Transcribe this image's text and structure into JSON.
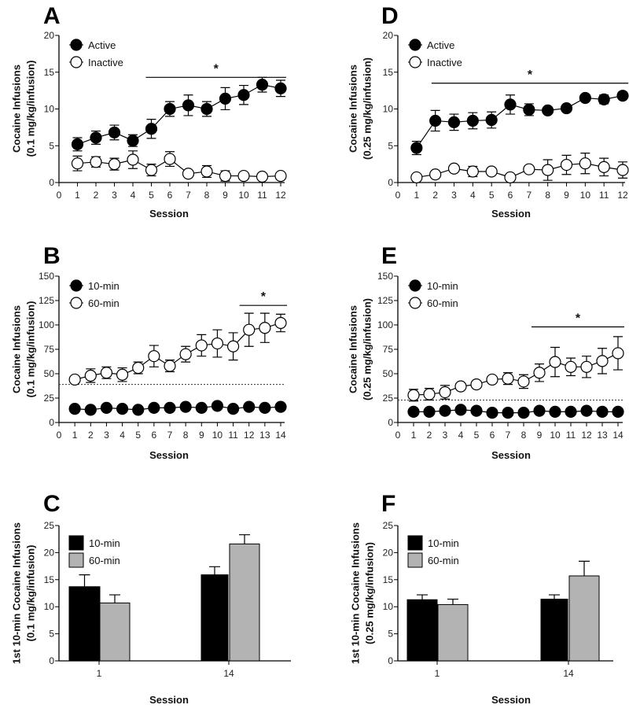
{
  "chart_data": [
    {
      "panel_label": "A",
      "type": "line",
      "ylabel": [
        "Cocaine Infusions",
        "(0.1 mg/kg/infusion)"
      ],
      "xlabel": "Session",
      "xlim": [
        0,
        12
      ],
      "ylim": [
        0,
        20
      ],
      "xticks": [
        "0",
        "1",
        "2",
        "3",
        "4",
        "5",
        "6",
        "7",
        "8",
        "9",
        "10",
        "11",
        "12"
      ],
      "yticks": [
        "0",
        "5",
        "10",
        "15",
        "20"
      ],
      "x": [
        1,
        2,
        3,
        4,
        5,
        6,
        7,
        8,
        9,
        10,
        11,
        12
      ],
      "series": [
        {
          "name": "Active",
          "marker": "filled",
          "values": [
            5.2,
            6.1,
            6.8,
            5.7,
            7.3,
            10.0,
            10.5,
            10.0,
            11.4,
            11.9,
            13.3,
            12.8
          ],
          "sem": [
            0.9,
            0.9,
            1.0,
            0.8,
            1.3,
            1.0,
            1.4,
            1.0,
            1.5,
            1.3,
            1.0,
            1.1
          ]
        },
        {
          "name": "Inactive",
          "marker": "open",
          "values": [
            2.6,
            2.8,
            2.5,
            3.1,
            1.7,
            3.2,
            1.2,
            1.5,
            0.9,
            0.9,
            0.8,
            0.9
          ],
          "sem": [
            1.0,
            0.7,
            0.8,
            1.2,
            0.8,
            1.0,
            0.3,
            0.8,
            0.7,
            0.3,
            0.3,
            0.3
          ]
        }
      ],
      "significance": {
        "label": "*",
        "y": 14.3,
        "x_range": [
          4.7,
          12.3
        ]
      },
      "legend_position": "top-left"
    },
    {
      "panel_label": "B",
      "type": "line",
      "ylabel": [
        "Cocaine Infusions",
        "(0.1 mg/kg/infusion)"
      ],
      "xlabel": "Session",
      "xlim": [
        0,
        14
      ],
      "ylim": [
        0,
        150
      ],
      "xticks": [
        "0",
        "1",
        "2",
        "3",
        "4",
        "5",
        "6",
        "7",
        "8",
        "9",
        "10",
        "11",
        "12",
        "13",
        "14"
      ],
      "yticks": [
        "0",
        "25",
        "50",
        "75",
        "100",
        "125",
        "150"
      ],
      "x": [
        1,
        2,
        3,
        4,
        5,
        6,
        7,
        8,
        9,
        10,
        11,
        12,
        13,
        14
      ],
      "series": [
        {
          "name": "10-min",
          "marker": "filled",
          "values": [
            14,
            13,
            15,
            14,
            13,
            15,
            15,
            16,
            15,
            17,
            14,
            16,
            15,
            16
          ],
          "sem": [
            1,
            1,
            1,
            1,
            1,
            1,
            1,
            1,
            1,
            1,
            1,
            1,
            1,
            1
          ]
        },
        {
          "name": "60-min",
          "marker": "open",
          "values": [
            44,
            48,
            51,
            49,
            56,
            68,
            58,
            70,
            79,
            81,
            78,
            95,
            97,
            102
          ],
          "sem": [
            2,
            7,
            6,
            7,
            6,
            11,
            6,
            8,
            11,
            14,
            14,
            17,
            15,
            9
          ]
        }
      ],
      "reference_line": 39,
      "significance": {
        "label": "*",
        "y": 120,
        "x_range": [
          11.4,
          14.4
        ]
      },
      "legend_position": "top-left"
    },
    {
      "panel_label": "C",
      "type": "bar",
      "ylabel": [
        "1st 10-min Cocaine Infusions",
        "(0.1 mg/kg/infusion)"
      ],
      "xlabel": "Session",
      "ylim": [
        0,
        25
      ],
      "yticks": [
        "0",
        "5",
        "10",
        "15",
        "20",
        "25"
      ],
      "categories": [
        "1",
        "14"
      ],
      "series": [
        {
          "name": "10-min",
          "color": "#000000",
          "values": [
            13.7,
            15.9
          ],
          "sem": [
            2.2,
            1.5
          ]
        },
        {
          "name": "60-min",
          "color": "#b3b3b3",
          "values": [
            10.7,
            21.6
          ],
          "sem": [
            1.5,
            1.7
          ]
        }
      ],
      "legend_position": "top-left"
    },
    {
      "panel_label": "D",
      "type": "line",
      "ylabel": [
        "Cocaine Infusions",
        "(0.25 mg/kg/infusion)"
      ],
      "xlabel": "Session",
      "xlim": [
        0,
        12
      ],
      "ylim": [
        0,
        20
      ],
      "xticks": [
        "0",
        "1",
        "2",
        "3",
        "4",
        "5",
        "6",
        "7",
        "8",
        "9",
        "10",
        "11",
        "12"
      ],
      "yticks": [
        "0",
        "5",
        "10",
        "15",
        "20"
      ],
      "x": [
        1,
        2,
        3,
        4,
        5,
        6,
        7,
        8,
        9,
        10,
        11,
        12
      ],
      "series": [
        {
          "name": "Active",
          "marker": "filled",
          "values": [
            4.7,
            8.4,
            8.2,
            8.4,
            8.5,
            10.6,
            9.9,
            9.8,
            10.1,
            11.5,
            11.3,
            11.8
          ],
          "sem": [
            0.9,
            1.4,
            1.1,
            1.1,
            1.1,
            1.3,
            0.8,
            0.3,
            0.3,
            0.3,
            0.6,
            0.3
          ]
        },
        {
          "name": "Inactive",
          "marker": "open",
          "values": [
            0.7,
            1.1,
            1.9,
            1.5,
            1.5,
            0.7,
            1.8,
            1.7,
            2.4,
            2.6,
            2.1,
            1.7
          ],
          "sem": [
            0.2,
            0.3,
            0.3,
            0.7,
            0.3,
            0.2,
            0.3,
            1.4,
            1.3,
            1.4,
            1.2,
            1.1
          ]
        }
      ],
      "significance": {
        "label": "*",
        "y": 13.5,
        "x_range": [
          1.8,
          12.3
        ]
      },
      "legend_position": "top-left"
    },
    {
      "panel_label": "E",
      "type": "line",
      "ylabel": [
        "Cocaine Infusions",
        "(0.25 mg/kg/infusion)"
      ],
      "xlabel": "Session",
      "xlim": [
        0,
        14
      ],
      "ylim": [
        0,
        150
      ],
      "xticks": [
        "0",
        "1",
        "2",
        "3",
        "4",
        "5",
        "6",
        "7",
        "8",
        "9",
        "10",
        "11",
        "12",
        "13",
        "14"
      ],
      "yticks": [
        "0",
        "25",
        "50",
        "75",
        "100",
        "125",
        "150"
      ],
      "x": [
        1,
        2,
        3,
        4,
        5,
        6,
        7,
        8,
        9,
        10,
        11,
        12,
        13,
        14
      ],
      "series": [
        {
          "name": "10-min",
          "marker": "filled",
          "values": [
            11,
            11,
            12,
            13,
            12,
            10,
            10,
            10,
            12,
            11,
            11,
            12,
            11,
            11
          ],
          "sem": [
            1,
            1,
            1,
            1,
            1,
            1,
            1,
            1,
            1,
            1,
            1,
            1,
            1,
            1
          ]
        },
        {
          "name": "60-min",
          "marker": "open",
          "values": [
            28,
            29,
            31,
            37,
            39,
            44,
            45,
            42,
            51,
            62,
            57,
            57,
            63,
            71
          ],
          "sem": [
            6,
            6,
            7,
            2,
            2,
            2,
            6,
            7,
            9,
            15,
            9,
            11,
            13,
            17
          ]
        }
      ],
      "reference_line": 23,
      "significance": {
        "label": "*",
        "y": 98,
        "x_range": [
          8.5,
          14.4
        ]
      },
      "legend_position": "top-left"
    },
    {
      "panel_label": "F",
      "type": "bar",
      "ylabel": [
        "1st 10-min Cocaine Infusions",
        "(0.25 mg/kg/infusion)"
      ],
      "xlabel": "Session",
      "ylim": [
        0,
        25
      ],
      "yticks": [
        "0",
        "5",
        "10",
        "15",
        "20",
        "25"
      ],
      "categories": [
        "1",
        "14"
      ],
      "series": [
        {
          "name": "10-min",
          "color": "#000000",
          "values": [
            11.3,
            11.4
          ],
          "sem": [
            0.9,
            0.8
          ]
        },
        {
          "name": "60-min",
          "color": "#b3b3b3",
          "values": [
            10.4,
            15.7
          ],
          "sem": [
            1.0,
            2.7
          ]
        }
      ],
      "legend_position": "top-left"
    }
  ]
}
